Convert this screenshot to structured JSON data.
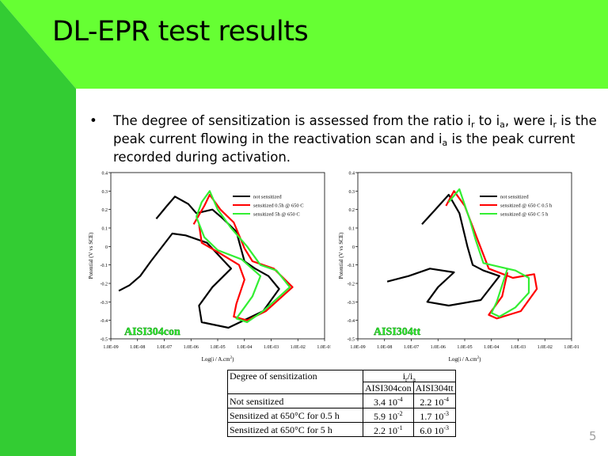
{
  "slide": {
    "title": "DL-EPR test results",
    "bullet": "•",
    "text_1": "The degree of sensitization is assessed from the ratio i",
    "sub_1": "r",
    "text_2": " to i",
    "sub_2": "a",
    "text_3": ", were i",
    "sub_3": "r",
    "text_4": " is the peak current flowing in the reactivation scan and i",
    "sub_4": "a",
    "text_5": " is the peak current recorded during activation.",
    "page_number": "5",
    "colors": {
      "green": "#66FF33",
      "dark_green": "#33CC33"
    }
  },
  "chart_data": [
    {
      "type": "line",
      "title": "AISI304con",
      "xlabel": "Log(i / A.cm",
      "xlabel_sup": "2",
      "xlabel_end": ")",
      "ylabel": "Potential (V vs SCE)",
      "x_scale": "log",
      "xlim": [
        "1.0E-09",
        "1.0E-01"
      ],
      "ylim": [
        -0.5,
        0.4
      ],
      "xticks": [
        "1.0E-09",
        "1.0E-08",
        "1.0E-07",
        "1.0E-06",
        "1.0E-05",
        "1.0E-04",
        "1.0E-03",
        "1.0E-02",
        "1.0E-01"
      ],
      "yticks": [
        "0.4",
        "0.3",
        "0.2",
        "0.1",
        "0",
        "-0.1",
        "-0.2",
        "-0.3",
        "-0.4",
        "-0.5"
      ],
      "legend_position": "top-right",
      "series": [
        {
          "name": "not sensitized",
          "color": "#000000",
          "points": [
            [
              -7.3,
              0.15
            ],
            [
              -6.9,
              0.22
            ],
            [
              -6.6,
              0.27
            ],
            [
              -6.1,
              0.23
            ],
            [
              -5.8,
              0.18
            ],
            [
              -5.2,
              0.2
            ],
            [
              -4.8,
              0.15
            ],
            [
              -4.3,
              0.08
            ],
            [
              -4.0,
              -0.08
            ],
            [
              -3.6,
              -0.12
            ],
            [
              -3.1,
              -0.16
            ],
            [
              -2.7,
              -0.23
            ],
            [
              -3.3,
              -0.35
            ],
            [
              -4.6,
              -0.44
            ],
            [
              -5.6,
              -0.41
            ],
            [
              -5.7,
              -0.32
            ],
            [
              -5.2,
              -0.22
            ],
            [
              -4.5,
              -0.12
            ],
            [
              -5.4,
              0.02
            ],
            [
              -6.2,
              0.06
            ],
            [
              -6.7,
              0.07
            ],
            [
              -7.5,
              -0.08
            ],
            [
              -7.9,
              -0.16
            ],
            [
              -8.3,
              -0.21
            ],
            [
              -8.7,
              -0.24
            ]
          ]
        },
        {
          "name": "sensitized 0.5h @ 650 C",
          "color": "#FF0000",
          "points": [
            [
              -5.9,
              0.12
            ],
            [
              -5.5,
              0.22
            ],
            [
              -5.3,
              0.28
            ],
            [
              -4.9,
              0.2
            ],
            [
              -4.4,
              0.13
            ],
            [
              -4.0,
              -0.01
            ],
            [
              -3.7,
              -0.08
            ],
            [
              -2.9,
              -0.12
            ],
            [
              -2.2,
              -0.22
            ],
            [
              -3.2,
              -0.35
            ],
            [
              -3.9,
              -0.4
            ],
            [
              -4.4,
              -0.38
            ],
            [
              -4.3,
              -0.31
            ],
            [
              -4.0,
              -0.18
            ],
            [
              -4.2,
              -0.1
            ],
            [
              -5.0,
              -0.03
            ],
            [
              -5.6,
              0.02
            ],
            [
              -5.7,
              0.12
            ]
          ]
        },
        {
          "name": "sensitized 5h @ 650 C",
          "color": "#33EE33",
          "points": [
            [
              -5.8,
              0.16
            ],
            [
              -5.6,
              0.24
            ],
            [
              -5.3,
              0.3
            ],
            [
              -5.0,
              0.2
            ],
            [
              -4.5,
              0.1
            ],
            [
              -3.9,
              0.0
            ],
            [
              -3.4,
              -0.1
            ],
            [
              -2.8,
              -0.13
            ],
            [
              -2.3,
              -0.22
            ],
            [
              -3.3,
              -0.35
            ],
            [
              -3.9,
              -0.41
            ],
            [
              -4.3,
              -0.39
            ],
            [
              -4.0,
              -0.33
            ],
            [
              -3.7,
              -0.27
            ],
            [
              -3.4,
              -0.16
            ],
            [
              -4.1,
              -0.07
            ],
            [
              -5.0,
              -0.02
            ],
            [
              -5.5,
              0.05
            ],
            [
              -5.8,
              0.16
            ]
          ]
        }
      ]
    },
    {
      "type": "line",
      "title": "AISI304tt",
      "xlabel": "Log(i / A.cm",
      "xlabel_sup": "2",
      "xlabel_end": ")",
      "ylabel": "Potential (V vs SCE)",
      "x_scale": "log",
      "xlim": [
        "1.0E-09",
        "1.0E-01"
      ],
      "ylim": [
        -0.5,
        0.4
      ],
      "xticks": [
        "1.0E-09",
        "1.0E-08",
        "1.0E-07",
        "1.0E-06",
        "1.0E-05",
        "1.0E-04",
        "1.0E-03",
        "1.0E-02",
        "1.0E-01"
      ],
      "yticks": [
        "0.4",
        "0.3",
        "0.2",
        "0.1",
        "0",
        "-0.1",
        "-0.2",
        "-0.3",
        "-0.4",
        "-0.5"
      ],
      "legend_position": "top-right",
      "series": [
        {
          "name": "not sensitized",
          "color": "#000000",
          "points": [
            [
              -6.6,
              0.12
            ],
            [
              -6.1,
              0.2
            ],
            [
              -5.6,
              0.28
            ],
            [
              -5.2,
              0.18
            ],
            [
              -4.9,
              0.0
            ],
            [
              -4.7,
              -0.1
            ],
            [
              -4.3,
              -0.13
            ],
            [
              -3.7,
              -0.16
            ],
            [
              -4.4,
              -0.29
            ],
            [
              -5.6,
              -0.32
            ],
            [
              -6.4,
              -0.3
            ],
            [
              -6.0,
              -0.22
            ],
            [
              -5.4,
              -0.14
            ],
            [
              -6.3,
              -0.12
            ],
            [
              -7.1,
              -0.16
            ],
            [
              -7.9,
              -0.19
            ]
          ]
        },
        {
          "name": "sensitized @ 650 C 0.5 h",
          "color": "#FF0000",
          "points": [
            [
              -5.7,
              0.22
            ],
            [
              -5.4,
              0.3
            ],
            [
              -5.0,
              0.22
            ],
            [
              -4.5,
              0.03
            ],
            [
              -4.1,
              -0.12
            ],
            [
              -3.2,
              -0.17
            ],
            [
              -2.4,
              -0.15
            ],
            [
              -2.3,
              -0.23
            ],
            [
              -2.9,
              -0.35
            ],
            [
              -3.8,
              -0.39
            ],
            [
              -4.1,
              -0.37
            ],
            [
              -3.6,
              -0.27
            ],
            [
              -3.4,
              -0.14
            ]
          ]
        },
        {
          "name": "sensitized @ 650 C 5 h",
          "color": "#33EE33",
          "points": [
            [
              -5.6,
              0.24
            ],
            [
              -5.2,
              0.31
            ],
            [
              -4.8,
              0.14
            ],
            [
              -4.6,
              0.04
            ],
            [
              -4.3,
              -0.09
            ],
            [
              -3.1,
              -0.13
            ],
            [
              -2.6,
              -0.17
            ],
            [
              -2.6,
              -0.25
            ],
            [
              -3.1,
              -0.33
            ],
            [
              -3.7,
              -0.38
            ],
            [
              -4.0,
              -0.36
            ],
            [
              -3.8,
              -0.3
            ],
            [
              -3.4,
              -0.12
            ]
          ]
        }
      ]
    }
  ],
  "table": {
    "header_label": "Degree of sensitization",
    "ratio_i": "i",
    "ratio_r": "r",
    "ratio_slash": "/i",
    "ratio_a": "a",
    "col_1": "AISI304con",
    "col_2": "AISI304tt",
    "rows": [
      {
        "label": "Not sensitized",
        "v1": "3.4 10",
        "e1": "-4",
        "v2": "2.2 10",
        "e2": "-4"
      },
      {
        "label": "Sensitized at 650°C for 0.5 h",
        "v1": "5.9 10",
        "e1": "-2",
        "v2": "1.7 10",
        "e2": "-3"
      },
      {
        "label": "Sensitized at 650°C for 5 h",
        "v1": "2.2 10",
        "e1": "-1",
        "v2": "6.0 10",
        "e2": "-3"
      }
    ]
  }
}
